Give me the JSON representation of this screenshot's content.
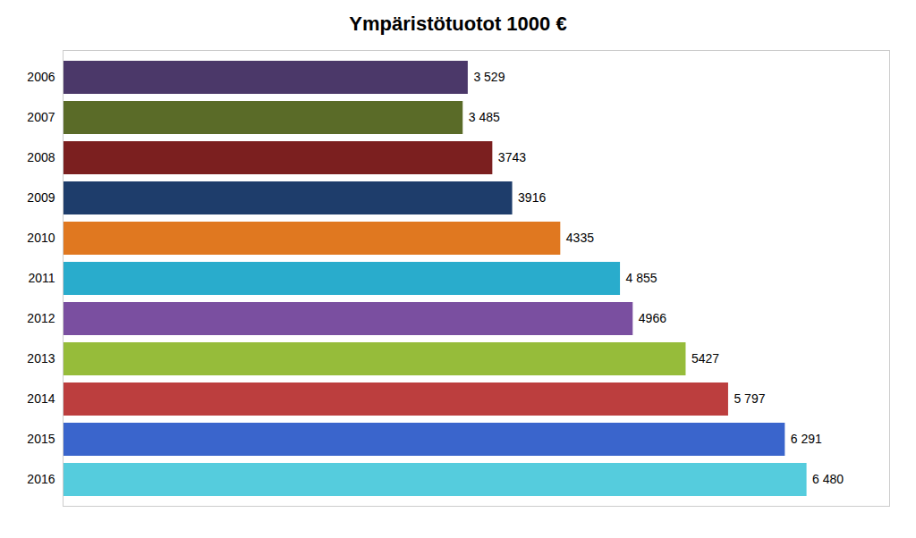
{
  "chart_data": {
    "type": "bar",
    "orientation": "horizontal",
    "title": "Ympäristötuotot 1000 €",
    "categories": [
      "2006",
      "2007",
      "2008",
      "2009",
      "2010",
      "2011",
      "2012",
      "2013",
      "2014",
      "2015",
      "2016"
    ],
    "values": [
      3529,
      3485,
      3743,
      3916,
      4335,
      4855,
      4966,
      5427,
      5797,
      6291,
      6480
    ],
    "value_labels": [
      "3 529",
      "3 485",
      "3743",
      "3916",
      "4335",
      "4 855",
      "4966",
      "5427",
      "5 797",
      "6 291",
      "6 480"
    ],
    "colors": [
      "#4B3869",
      "#5A6B28",
      "#7B1F1F",
      "#1E3D6B",
      "#E07820",
      "#29ACCC",
      "#7A4FA0",
      "#96BC3A",
      "#BC3E3E",
      "#3A65CC",
      "#55CCDD"
    ],
    "xlim": [
      0,
      7200
    ],
    "data_labels": true,
    "tick_labels": "y",
    "grid": false
  }
}
